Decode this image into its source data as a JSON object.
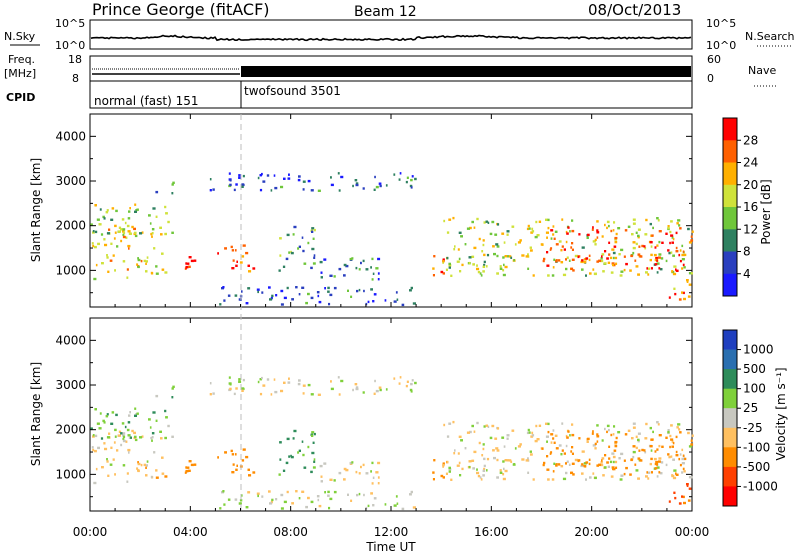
{
  "header": {
    "station": "Prince George (fitACF)",
    "beam": "Beam 12",
    "date": "08/Oct/2013"
  },
  "panels": {
    "noise": {
      "left_label": "N.Sky",
      "right_label": "N.Search",
      "left_ticks": [
        "10^5",
        "10^0"
      ],
      "right_ticks": [
        "10^5",
        "10^0"
      ]
    },
    "freq": {
      "left_label_1": "Freq.",
      "left_label_2": "[MHz]",
      "right_label": "Nave",
      "left_ticks": [
        "18",
        "8"
      ],
      "right_ticks": [
        "60",
        "0"
      ]
    },
    "cpid": {
      "label": "CPID",
      "modes": [
        {
          "name": "normal (fast) 151",
          "start_hour": 0,
          "end_hour": 6
        },
        {
          "name": "twofsound 3501",
          "start_hour": 6,
          "end_hour": 24
        }
      ]
    }
  },
  "x_axis": {
    "title": "Time UT",
    "ticks": [
      "00:00",
      "04:00",
      "08:00",
      "12:00",
      "16:00",
      "20:00",
      "00:00"
    ],
    "range_hours": [
      0,
      24
    ]
  },
  "power_panel": {
    "ylabel": "Slant Range [km]",
    "yticks": [
      "4000",
      "3000",
      "2000",
      "1000"
    ],
    "colorbar_title": "Power [dB]",
    "colorbar_ticks": [
      "28",
      "24",
      "20",
      "16",
      "12",
      "8",
      "4"
    ],
    "colors": [
      "#1a1aff",
      "#2a3fbf",
      "#2e8060",
      "#6fc63a",
      "#cfe23a",
      "#ffb000",
      "#ff6000",
      "#ff0000"
    ]
  },
  "velocity_panel": {
    "ylabel": "Slant Range [km]",
    "yticks": [
      "4000",
      "3000",
      "2000",
      "1000"
    ],
    "colorbar_title": "Velocity [m s⁻¹]",
    "colorbar_ticks": [
      "1000",
      "500",
      "100",
      "25",
      "-25",
      "-100",
      "-500",
      "-1000"
    ],
    "colors": [
      "#1f3fbf",
      "#2a6fb0",
      "#2e8c5a",
      "#7fd03a",
      "#c8c8c0",
      "#ffc060",
      "#ff8c00",
      "#ff4000",
      "#ff0000"
    ]
  },
  "chart_data": {
    "type": "heatmap",
    "x_label": "Time UT",
    "y_label": "Slant Range [km]",
    "x_range_hours": [
      0,
      24
    ],
    "y_range_km": [
      180,
      4500
    ],
    "power_colorbar_range_db": [
      0,
      30
    ],
    "velocity_colorbar_range_ms": [
      -1000,
      1000
    ],
    "scatter_regions": [
      {
        "t0": 0.0,
        "t1": 3.0,
        "r0": 800,
        "r1": 2000,
        "power_db": 18,
        "velocity_ms": -30
      },
      {
        "t0": 0.0,
        "t1": 3.5,
        "r0": 1800,
        "r1": 2500,
        "power_db": 14,
        "velocity_ms": 80
      },
      {
        "t0": 2.5,
        "t1": 3.3,
        "r0": 2700,
        "r1": 3000,
        "power_db": 10,
        "velocity_ms": 60
      },
      {
        "t0": 3.5,
        "t1": 4.3,
        "r0": 800,
        "r1": 1400,
        "power_db": 28,
        "velocity_ms": -300
      },
      {
        "t0": 5.0,
        "t1": 6.5,
        "r0": 1000,
        "r1": 1600,
        "power_db": 25,
        "velocity_ms": -200
      },
      {
        "t0": 4.5,
        "t1": 13.0,
        "r0": 2800,
        "r1": 3200,
        "power_db": 6,
        "velocity_ms": 0
      },
      {
        "t0": 7.5,
        "t1": 9.0,
        "r0": 1000,
        "r1": 2000,
        "power_db": 10,
        "velocity_ms": 120
      },
      {
        "t0": 9.0,
        "t1": 12.0,
        "r0": 800,
        "r1": 1300,
        "power_db": 8,
        "velocity_ms": -20
      },
      {
        "t0": 5.0,
        "t1": 13.0,
        "r0": 250,
        "r1": 650,
        "power_db": 6,
        "velocity_ms": 20
      },
      {
        "t0": 13.5,
        "t1": 14.2,
        "r0": 900,
        "r1": 1500,
        "power_db": 24,
        "velocity_ms": -150
      },
      {
        "t0": 14.0,
        "t1": 24.0,
        "r0": 900,
        "r1": 2200,
        "power_db": 16,
        "velocity_ms": -20
      },
      {
        "t0": 18.0,
        "t1": 24.0,
        "r0": 1000,
        "r1": 2000,
        "power_db": 26,
        "velocity_ms": -400
      },
      {
        "t0": 23.0,
        "t1": 24.0,
        "r0": 300,
        "r1": 900,
        "power_db": 24,
        "velocity_ms": -500
      }
    ]
  }
}
